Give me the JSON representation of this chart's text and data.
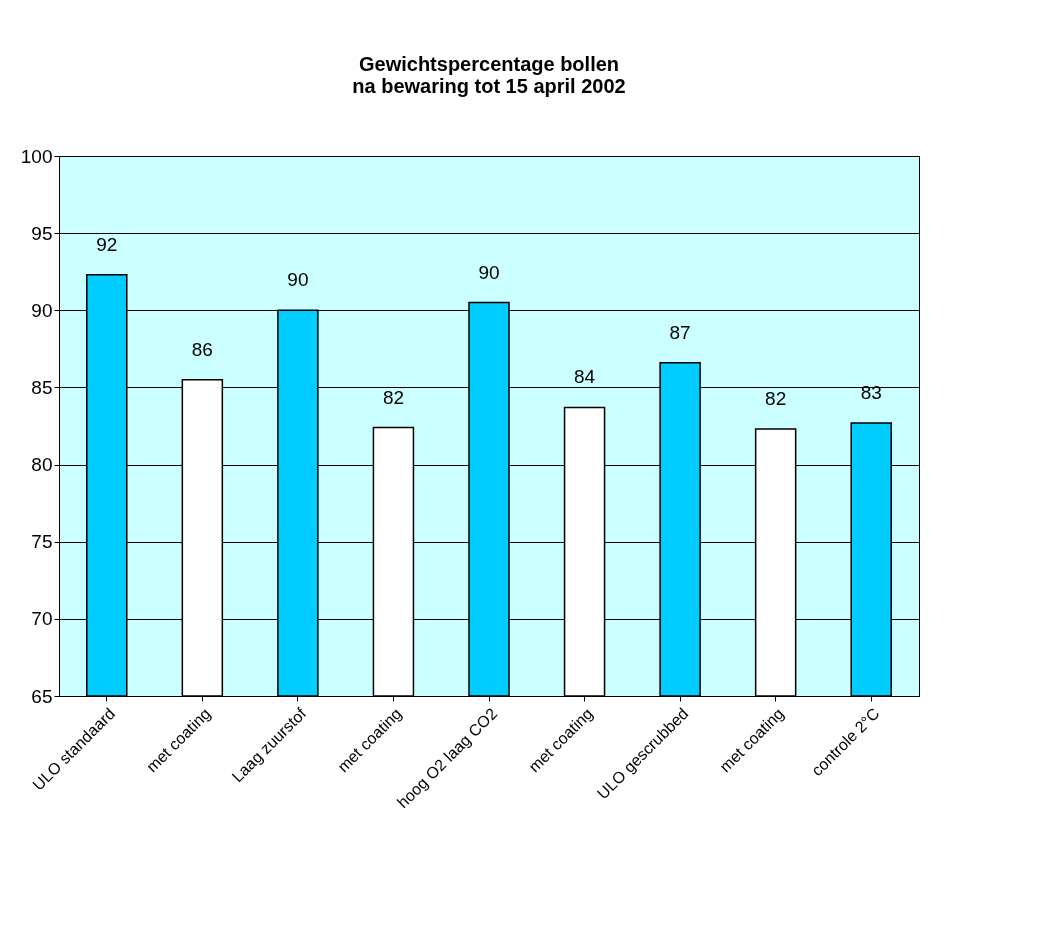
{
  "chart_data": {
    "type": "bar",
    "title": [
      "Gewichtspercentage bollen",
      "na bewaring tot 15 april 2002"
    ],
    "categories": [
      "ULO standaard",
      "met coating",
      "Laag zuurstof",
      "met coating",
      "hoog O2 laag CO2",
      "met coating",
      "ULO gescrubbed",
      "met coating",
      "controle 2°C"
    ],
    "values": [
      92.3,
      85.5,
      90.0,
      82.4,
      90.5,
      83.7,
      86.6,
      82.3,
      82.7
    ],
    "value_labels": [
      "92",
      "86",
      "90",
      "82",
      "90",
      "84",
      "87",
      "82",
      "83"
    ],
    "colors": [
      "#00ccff",
      "#ffffff",
      "#00ccff",
      "#ffffff",
      "#00ccff",
      "#ffffff",
      "#00ccff",
      "#ffffff",
      "#00ccff"
    ],
    "ylim": [
      65,
      100
    ],
    "yticks": [
      65,
      70,
      75,
      80,
      85,
      90,
      95,
      100
    ],
    "grid": "y"
  }
}
